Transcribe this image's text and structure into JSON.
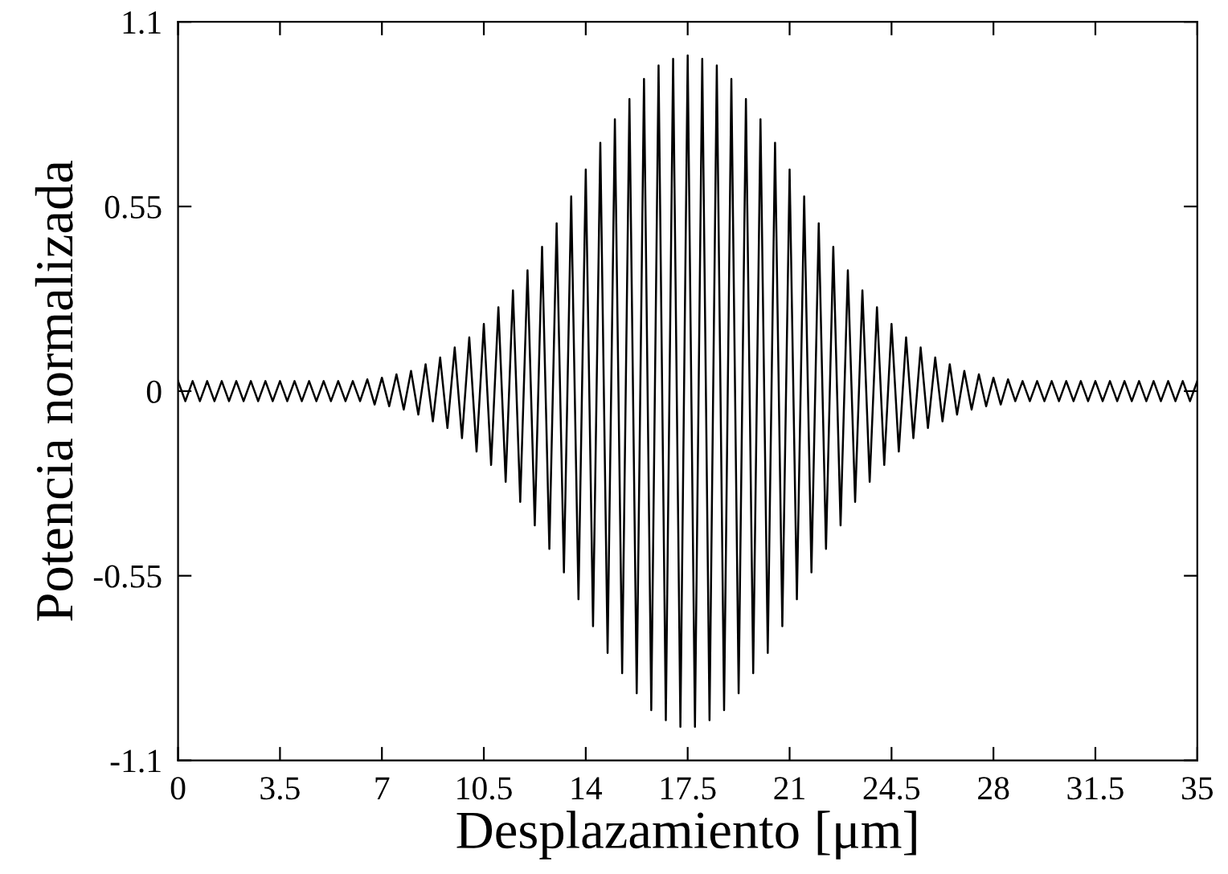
{
  "chart_data": {
    "type": "line",
    "xlabel": "Desplazamiento [μm]",
    "ylabel": "Potencia normalizada",
    "x": [
      0,
      0.25,
      0.5,
      0.75,
      1,
      1.25,
      1.5,
      1.75,
      2,
      2.25,
      2.5,
      2.75,
      3,
      3.25,
      3.5,
      3.75,
      4,
      4.25,
      4.5,
      4.75,
      5,
      5.25,
      5.5,
      5.75,
      6,
      6.25,
      6.5,
      6.75,
      7,
      7.25,
      7.5,
      7.75,
      8,
      8.25,
      8.5,
      8.75,
      9,
      9.25,
      9.5,
      9.75,
      10,
      10.25,
      10.5,
      10.75,
      11,
      11.25,
      11.5,
      11.75,
      12,
      12.25,
      12.5,
      12.75,
      13,
      13.25,
      13.5,
      13.75,
      14,
      14.25,
      14.5,
      14.75,
      15,
      15.25,
      15.5,
      15.75,
      16,
      16.25,
      16.5,
      16.75,
      17,
      17.25,
      17.5,
      17.75,
      18,
      18.25,
      18.5,
      18.75,
      19,
      19.25,
      19.5,
      19.75,
      20,
      20.25,
      20.5,
      20.75,
      21,
      21.25,
      21.5,
      21.75,
      22,
      22.25,
      22.5,
      22.75,
      23,
      23.25,
      23.5,
      23.75,
      24,
      24.25,
      24.5,
      24.75,
      25,
      25.25,
      25.5,
      25.75,
      26,
      26.25,
      26.5,
      26.75,
      27,
      27.25,
      27.5,
      27.75,
      28,
      28.25,
      28.5,
      28.75,
      29,
      29.25,
      29.5,
      29.75,
      30,
      30.25,
      30.5,
      30.75,
      31,
      31.25,
      31.5,
      31.75,
      32,
      32.25,
      32.5,
      32.75,
      33,
      33.25,
      33.5,
      33.75,
      34,
      34.25,
      34.5,
      34.75,
      35
    ],
    "series": [
      {
        "color": "#000000",
        "values": [
          0.03,
          -0.03,
          0.03,
          -0.03,
          0.03,
          -0.03,
          0.03,
          -0.03,
          0.03,
          -0.03,
          0.03,
          -0.03,
          0.03,
          -0.03,
          0.03,
          -0.03,
          0.03,
          -0.03,
          0.03,
          -0.03,
          0.03,
          -0.03,
          0.03,
          -0.03,
          0.03,
          -0.03,
          0.035,
          -0.04,
          0.04,
          -0.045,
          0.05,
          -0.055,
          0.06,
          -0.07,
          0.08,
          -0.09,
          0.1,
          -0.11,
          0.13,
          -0.14,
          0.16,
          -0.18,
          0.2,
          -0.22,
          0.25,
          -0.27,
          0.3,
          -0.33,
          0.36,
          -0.4,
          0.43,
          -0.47,
          0.5,
          -0.54,
          0.58,
          -0.62,
          0.66,
          -0.7,
          0.74,
          -0.78,
          0.81,
          -0.84,
          0.87,
          -0.9,
          0.93,
          -0.95,
          0.97,
          -0.98,
          0.99,
          -1.0,
          1.0,
          -1.0,
          0.99,
          -0.98,
          0.97,
          -0.95,
          0.93,
          -0.9,
          0.87,
          -0.84,
          0.81,
          -0.78,
          0.74,
          -0.7,
          0.66,
          -0.62,
          0.58,
          -0.54,
          0.5,
          -0.47,
          0.43,
          -0.4,
          0.36,
          -0.33,
          0.3,
          -0.27,
          0.25,
          -0.22,
          0.2,
          -0.18,
          0.16,
          -0.14,
          0.13,
          -0.11,
          0.1,
          -0.09,
          0.08,
          -0.07,
          0.06,
          -0.055,
          0.05,
          -0.045,
          0.04,
          -0.04,
          0.035,
          -0.03,
          0.03,
          -0.03,
          0.03,
          -0.03,
          0.03,
          -0.03,
          0.03,
          -0.03,
          0.03,
          -0.03,
          0.03,
          -0.03,
          0.03,
          -0.03,
          0.03,
          -0.03,
          0.03,
          -0.03,
          0.03,
          -0.03,
          0.03,
          -0.03,
          0.03,
          -0.03,
          0.03
        ]
      }
    ],
    "xlim": [
      0,
      35
    ],
    "xticks": [
      0,
      3.5,
      7,
      10.5,
      14,
      17.5,
      21,
      24.5,
      28,
      31.5,
      35
    ],
    "ylim": [
      -1.1,
      1.1
    ],
    "yticks": [
      -1.1,
      -0.55,
      0,
      0.55,
      1.1
    ],
    "grid": false,
    "marker": "none",
    "line_style": "solid"
  }
}
